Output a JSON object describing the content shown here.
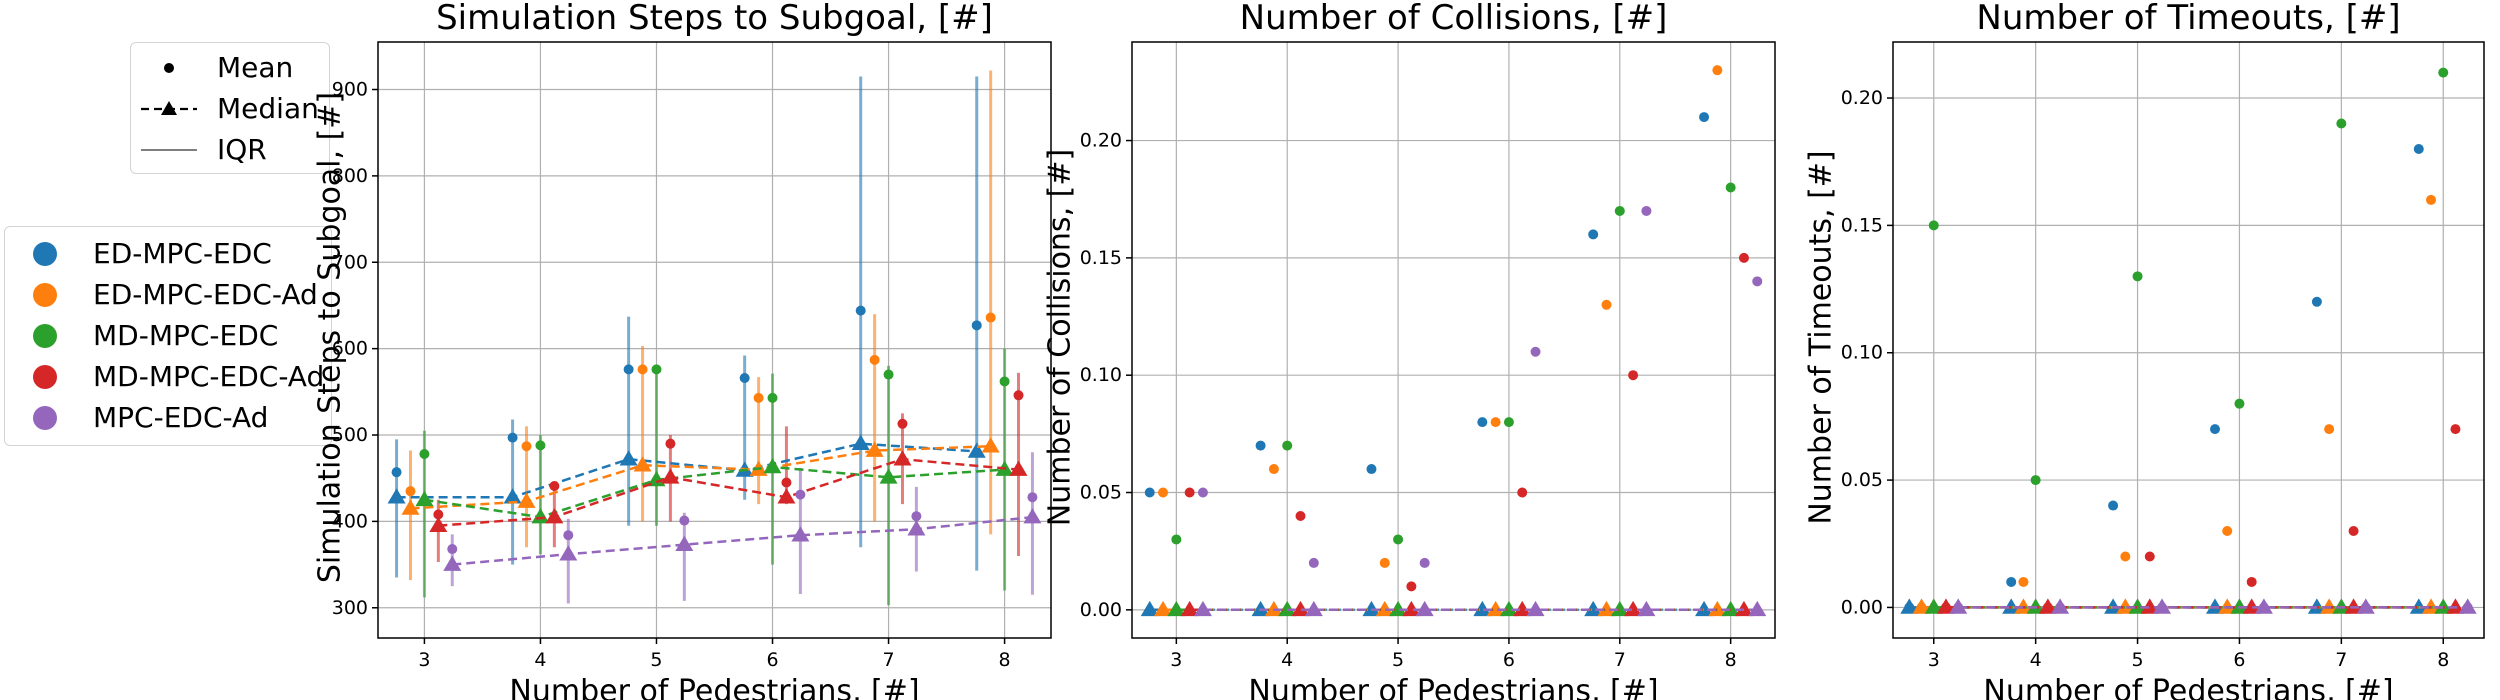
{
  "legend_stats": {
    "items": [
      {
        "label": "Mean",
        "symbol": "dot"
      },
      {
        "label": "Median",
        "symbol": "dashed-triangle"
      },
      {
        "label": "IQR",
        "symbol": "line"
      }
    ]
  },
  "legend_methods": {
    "items": [
      {
        "label": "ED-MPC-EDC",
        "color": "#1f77b4"
      },
      {
        "label": "ED-MPC-EDC-Ad",
        "color": "#ff7f0e"
      },
      {
        "label": "MD-MPC-EDC",
        "color": "#2ca02c"
      },
      {
        "label": "MD-MPC-EDC-Ad",
        "color": "#d62728"
      },
      {
        "label": "MPC-EDC-Ad",
        "color": "#9467bd"
      }
    ]
  },
  "chart_data": [
    {
      "type": "scatter",
      "title": "Simulation Steps to Subgoal, [#]",
      "xlabel": "Number of Pedestrians, [#]",
      "ylabel": "Simulation Steps to Subgoal, [#]",
      "x": [
        3,
        4,
        5,
        6,
        7,
        8
      ],
      "xlim": [
        2.6,
        8.4
      ],
      "ylim": [
        265,
        955
      ],
      "yticks": [
        300,
        400,
        500,
        600,
        700,
        800,
        900
      ],
      "grid": true,
      "series": [
        {
          "name": "ED-MPC-EDC",
          "mean": [
            457,
            497,
            576,
            566,
            644,
            627
          ],
          "median": [
            428,
            428,
            472,
            459,
            490,
            481
          ],
          "iqr": [
            [
              335,
              495
            ],
            [
              350,
              518
            ],
            [
              395,
              637
            ],
            [
              425,
              592
            ],
            [
              370,
              915
            ],
            [
              343,
              915
            ]
          ]
        },
        {
          "name": "ED-MPC-EDC-Ad",
          "mean": [
            435,
            487,
            576,
            543,
            587,
            636
          ],
          "median": [
            415,
            423,
            465,
            460,
            482,
            487
          ],
          "iqr": [
            [
              332,
              482
            ],
            [
              370,
              510
            ],
            [
              400,
              603
            ],
            [
              420,
              567
            ],
            [
              400,
              640
            ],
            [
              385,
              922
            ]
          ]
        },
        {
          "name": "MD-MPC-EDC",
          "mean": [
            478,
            488,
            576,
            543,
            570,
            562
          ],
          "median": [
            425,
            405,
            448,
            463,
            451,
            460
          ],
          "iqr": [
            [
              312,
              505
            ],
            [
              362,
              500
            ],
            [
              395,
              580
            ],
            [
              350,
              571
            ],
            [
              303,
              580
            ],
            [
              320,
              600
            ]
          ]
        },
        {
          "name": "MD-MPC-EDC-Ad",
          "mean": [
            408,
            441,
            490,
            445,
            513,
            546
          ],
          "median": [
            395,
            405,
            451,
            428,
            472,
            460
          ],
          "iqr": [
            [
              353,
              425
            ],
            [
              370,
              445
            ],
            [
              400,
              500
            ],
            [
              420,
              510
            ],
            [
              420,
              525
            ],
            [
              360,
              572
            ]
          ]
        },
        {
          "name": "MPC-EDC-Ad",
          "mean": [
            368,
            384,
            401,
            431,
            406,
            428
          ],
          "median": [
            350,
            362,
            373,
            384,
            391,
            405
          ],
          "iqr": [
            [
              325,
              385
            ],
            [
              305,
              403
            ],
            [
              308,
              410
            ],
            [
              316,
              462
            ],
            [
              342,
              440
            ],
            [
              315,
              480
            ]
          ]
        }
      ]
    },
    {
      "type": "scatter",
      "title": "Number of Collisions, [#]",
      "xlabel": "Number of Pedestrians, [#]",
      "ylabel": "Number of Collisions, [#]",
      "x": [
        3,
        4,
        5,
        6,
        7,
        8
      ],
      "xlim": [
        2.6,
        8.4
      ],
      "ylim": [
        -0.012,
        0.242
      ],
      "yticks": [
        0.0,
        0.05,
        0.1,
        0.15,
        0.2
      ],
      "grid": true,
      "series": [
        {
          "name": "ED-MPC-EDC",
          "mean": [
            0.05,
            0.07,
            0.06,
            0.08,
            0.16,
            0.21
          ],
          "median": [
            0,
            0,
            0,
            0,
            0,
            0
          ]
        },
        {
          "name": "ED-MPC-EDC-Ad",
          "mean": [
            0.05,
            0.06,
            0.02,
            0.08,
            0.13,
            0.23
          ],
          "median": [
            0,
            0,
            0,
            0,
            0,
            0
          ]
        },
        {
          "name": "MD-MPC-EDC",
          "mean": [
            0.03,
            0.07,
            0.03,
            0.08,
            0.17,
            0.18
          ],
          "median": [
            0,
            0,
            0,
            0,
            0,
            0
          ]
        },
        {
          "name": "MD-MPC-EDC-Ad",
          "mean": [
            0.05,
            0.04,
            0.01,
            0.05,
            0.1,
            0.15
          ],
          "median": [
            0,
            0,
            0,
            0,
            0,
            0
          ]
        },
        {
          "name": "MPC-EDC-Ad",
          "mean": [
            0.05,
            0.02,
            0.02,
            0.11,
            0.17,
            0.14
          ],
          "median": [
            0,
            0,
            0,
            0,
            0,
            0
          ]
        }
      ]
    },
    {
      "type": "scatter",
      "title": "Number of Timeouts, [#]",
      "xlabel": "Number of Pedestrians, [#]",
      "ylabel": "Number of Timeouts, [#]",
      "x": [
        3,
        4,
        5,
        6,
        7,
        8
      ],
      "xlim": [
        2.6,
        8.4
      ],
      "ylim": [
        -0.012,
        0.222
      ],
      "yticks": [
        0.0,
        0.05,
        0.1,
        0.15,
        0.2
      ],
      "grid": true,
      "series": [
        {
          "name": "ED-MPC-EDC",
          "mean": [
            0.0,
            0.01,
            0.04,
            0.07,
            0.12,
            0.18
          ],
          "median": [
            0,
            0,
            0,
            0,
            0,
            0
          ]
        },
        {
          "name": "ED-MPC-EDC-Ad",
          "mean": [
            0.0,
            0.01,
            0.02,
            0.03,
            0.07,
            0.16
          ],
          "median": [
            0,
            0,
            0,
            0,
            0,
            0
          ]
        },
        {
          "name": "MD-MPC-EDC",
          "mean": [
            0.15,
            0.05,
            0.13,
            0.08,
            0.19,
            0.21
          ],
          "median": [
            0,
            0,
            0,
            0,
            0,
            0
          ]
        },
        {
          "name": "MD-MPC-EDC-Ad",
          "mean": [
            0.0,
            0.0,
            0.02,
            0.01,
            0.03,
            0.07
          ],
          "median": [
            0,
            0,
            0,
            0,
            0,
            0
          ]
        },
        {
          "name": "MPC-EDC-Ad",
          "mean": [
            0.0,
            0.0,
            0.0,
            0.0,
            0.0,
            0.0
          ],
          "median": [
            0,
            0,
            0,
            0,
            0,
            0
          ]
        }
      ]
    }
  ]
}
